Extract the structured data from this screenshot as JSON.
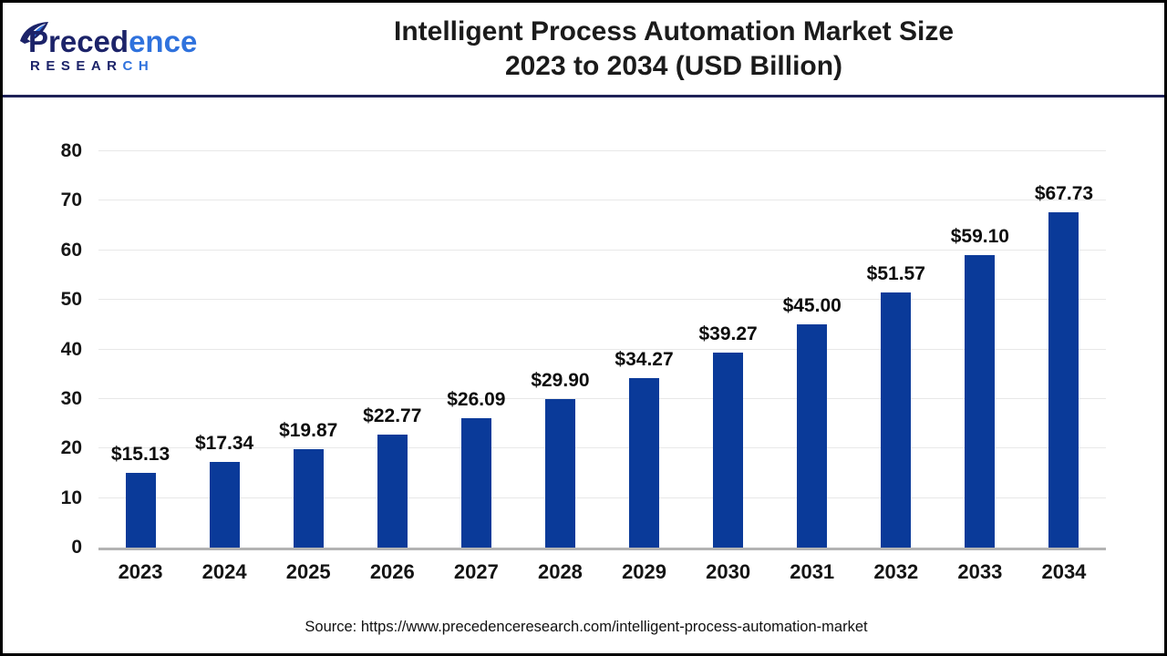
{
  "header": {
    "logo": {
      "name_dark": "Preced",
      "name_light": "ence",
      "sub_dark": "RESEAR",
      "sub_light": "CH"
    },
    "title_line1": "Intelligent Process Automation Market Size",
    "title_line2": "2023 to 2034 (USD Billion)"
  },
  "footer": {
    "source": "Source: https://www.precedenceresearch.com/intelligent-process-automation-market"
  },
  "colors": {
    "bar": "#0a3a99",
    "gridline": "#e8e8e8",
    "axis_line": "#b3b3b3",
    "divider": "#1e2157",
    "logo_navy": "#1c2369",
    "logo_blue": "#2f72dd"
  },
  "chart_data": {
    "type": "bar",
    "title": "Intelligent Process Automation Market Size 2023 to 2034 (USD Billion)",
    "xlabel": "",
    "ylabel": "",
    "categories": [
      "2023",
      "2024",
      "2025",
      "2026",
      "2027",
      "2028",
      "2029",
      "2030",
      "2031",
      "2032",
      "2033",
      "2034"
    ],
    "values": [
      15.13,
      17.34,
      19.87,
      22.77,
      26.09,
      29.9,
      34.27,
      39.27,
      45.0,
      51.57,
      59.1,
      67.73
    ],
    "labels": [
      "$15.13",
      "$17.34",
      "$19.87",
      "$22.77",
      "$26.09",
      "$29.90",
      "$34.27",
      "$39.27",
      "$45.00",
      "$51.57",
      "$59.10",
      "$67.73"
    ],
    "y_ticks": [
      0,
      10,
      20,
      30,
      40,
      50,
      60,
      70,
      80
    ],
    "ylim": [
      0,
      80
    ],
    "grid": true,
    "legend": false,
    "bar_color": "#0a3a99"
  }
}
